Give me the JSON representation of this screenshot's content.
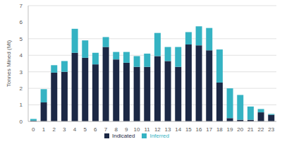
{
  "chart_data": {
    "type": "bar",
    "stacked": true,
    "y_label": "Tonnes Mined (Mt)",
    "categories": [
      "0",
      "1",
      "2",
      "3",
      "4",
      "5",
      "6",
      "7",
      "8",
      "9",
      "10",
      "11",
      "12",
      "13",
      "14",
      "15",
      "16",
      "17",
      "18",
      "19",
      "20",
      "21",
      "22",
      "23"
    ],
    "series": [
      {
        "name": "Indicated",
        "color": "#1c2845",
        "values": [
          0.05,
          1.15,
          2.95,
          3.0,
          4.15,
          3.85,
          3.45,
          4.5,
          3.75,
          3.55,
          3.3,
          3.3,
          3.95,
          3.65,
          3.3,
          4.65,
          4.6,
          4.3,
          2.35,
          0.2,
          0.1,
          0.1,
          0.55,
          0.4
        ]
      },
      {
        "name": "Inferred",
        "color": "#35b3c3",
        "values": [
          0.1,
          0.8,
          0.45,
          0.65,
          1.45,
          1.05,
          0.7,
          0.6,
          0.45,
          0.65,
          0.65,
          0.8,
          1.4,
          0.85,
          1.2,
          0.75,
          1.15,
          1.35,
          2.0,
          1.8,
          1.5,
          0.8,
          0.2,
          0.05
        ]
      }
    ],
    "ylim": [
      0,
      7
    ],
    "yticks": [
      0,
      1,
      2,
      3,
      4,
      5,
      6,
      7
    ],
    "grid": true,
    "legend": "bottom"
  }
}
